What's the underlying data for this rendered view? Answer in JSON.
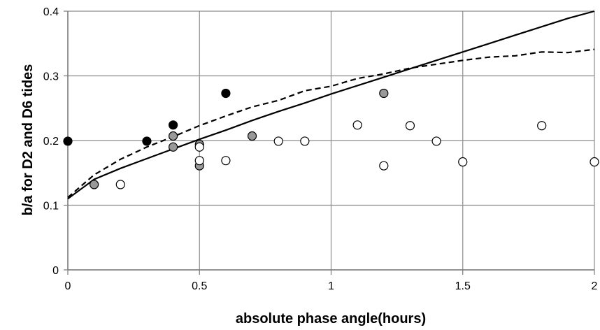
{
  "chart_data": {
    "type": "scatter",
    "xlabel": "absolute phase angle(hours)",
    "ylabel": "b/a for D2 and D6 tides",
    "xlim": [
      0,
      2
    ],
    "ylim": [
      0,
      0.4
    ],
    "x_ticks": [
      0,
      0.5,
      1,
      1.5,
      2
    ],
    "x_tick_labels": [
      "0",
      "0.5",
      "1",
      "1.5",
      "2"
    ],
    "y_ticks": [
      0,
      0.1,
      0.2,
      0.3,
      0.4
    ],
    "y_tick_labels": [
      "0",
      "0.1",
      "0.2",
      "0.3",
      "0.4"
    ],
    "grid": true,
    "legend": "none",
    "series": [
      {
        "kind": "scatter",
        "marker": "filled-black",
        "color": "#000000",
        "points": [
          [
            0,
            0.199
          ],
          [
            0.3,
            0.199
          ],
          [
            0.4,
            0.224
          ],
          [
            0.6,
            0.273
          ]
        ]
      },
      {
        "kind": "scatter",
        "marker": "filled-gray",
        "color": "#999999",
        "points": [
          [
            0.1,
            0.132
          ],
          [
            0.4,
            0.19
          ],
          [
            0.4,
            0.207
          ],
          [
            0.5,
            0.161
          ],
          [
            0.5,
            0.194
          ],
          [
            0.7,
            0.207
          ],
          [
            1.2,
            0.273
          ]
        ]
      },
      {
        "kind": "scatter",
        "marker": "open-circle",
        "color": "#ffffff",
        "points": [
          [
            0.2,
            0.132
          ],
          [
            0.5,
            0.169
          ],
          [
            0.5,
            0.19
          ],
          [
            0.6,
            0.169
          ],
          [
            0.8,
            0.199
          ],
          [
            0.9,
            0.199
          ],
          [
            1.1,
            0.224
          ],
          [
            1.2,
            0.161
          ],
          [
            1.3,
            0.223
          ],
          [
            1.4,
            0.199
          ],
          [
            1.5,
            0.167
          ],
          [
            1.8,
            0.223
          ],
          [
            2.0,
            0.167
          ]
        ]
      },
      {
        "kind": "line",
        "style": "solid",
        "color": "#000000",
        "points": [
          [
            0,
            0.11
          ],
          [
            0.1,
            0.14
          ],
          [
            0.2,
            0.157
          ],
          [
            0.3,
            0.172
          ],
          [
            0.4,
            0.187
          ],
          [
            0.5,
            0.202
          ],
          [
            0.6,
            0.216
          ],
          [
            0.7,
            0.231
          ],
          [
            0.8,
            0.245
          ],
          [
            0.9,
            0.258
          ],
          [
            1.0,
            0.272
          ],
          [
            1.1,
            0.285
          ],
          [
            1.2,
            0.298
          ],
          [
            1.3,
            0.311
          ],
          [
            1.4,
            0.324
          ],
          [
            1.5,
            0.337
          ],
          [
            1.6,
            0.35
          ],
          [
            1.7,
            0.363
          ],
          [
            1.8,
            0.376
          ],
          [
            1.9,
            0.389
          ],
          [
            2.0,
            0.4
          ]
        ]
      },
      {
        "kind": "line",
        "style": "dashed",
        "color": "#000000",
        "points": [
          [
            0,
            0.112
          ],
          [
            0.1,
            0.147
          ],
          [
            0.2,
            0.171
          ],
          [
            0.3,
            0.19
          ],
          [
            0.4,
            0.206
          ],
          [
            0.5,
            0.223
          ],
          [
            0.6,
            0.238
          ],
          [
            0.7,
            0.252
          ],
          [
            0.8,
            0.262
          ],
          [
            0.9,
            0.277
          ],
          [
            1.0,
            0.284
          ],
          [
            1.1,
            0.296
          ],
          [
            1.2,
            0.303
          ],
          [
            1.3,
            0.312
          ],
          [
            1.4,
            0.318
          ],
          [
            1.5,
            0.324
          ],
          [
            1.6,
            0.329
          ],
          [
            1.7,
            0.331
          ],
          [
            1.8,
            0.337
          ],
          [
            1.9,
            0.336
          ],
          [
            2.0,
            0.341
          ]
        ]
      }
    ]
  }
}
